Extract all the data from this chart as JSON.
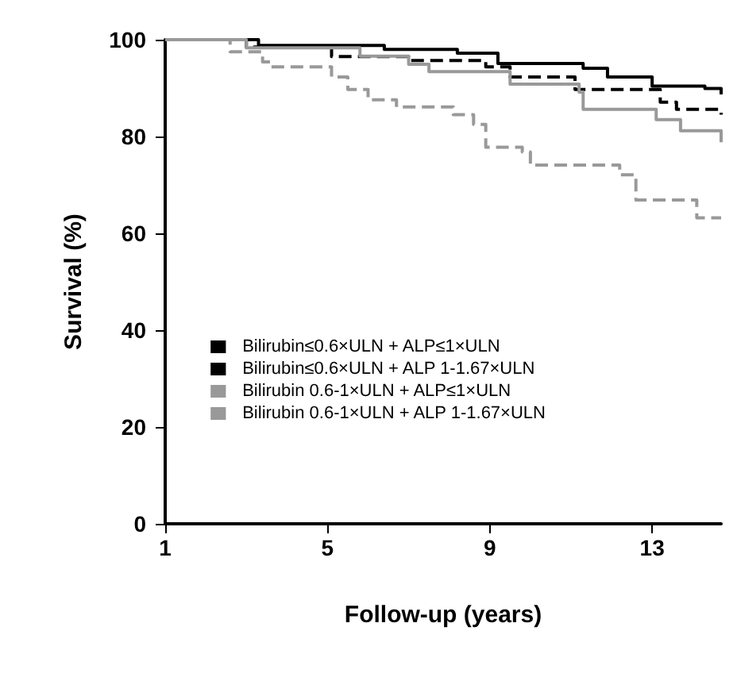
{
  "chart_data": {
    "type": "step",
    "xlabel": "Follow-up (years)",
    "ylabel": "Survival (%)",
    "xlim": [
      1,
      14.7
    ],
    "xticks": [
      1,
      5,
      9,
      13
    ],
    "ylim": [
      0,
      100
    ],
    "yticks": [
      0,
      20,
      40,
      60,
      80,
      100
    ],
    "grid": false,
    "legend": "left",
    "marker": "none",
    "series": [
      {
        "name": "Bilirubin≤0.6×ULN + ALP≤1×ULN",
        "color": "#000000",
        "line_style": "solid",
        "x": [
          1,
          3.3,
          6.4,
          8.2,
          9.2,
          11.3,
          11.9,
          13.0,
          14.3,
          14.7
        ],
        "values": [
          100,
          98.8,
          98,
          97.2,
          95.1,
          94.1,
          92.3,
          90.4,
          89.9,
          88.7
        ]
      },
      {
        "name": "Bilirubin≤0.6×ULN + ALP 1-1.67×ULN",
        "color": "#000000",
        "line_style": "dashed",
        "x": [
          1,
          3.0,
          5.1,
          7.0,
          8.9,
          9.5,
          11.1,
          13.2,
          13.6,
          14.7
        ],
        "values": [
          100,
          98.5,
          96.5,
          95.7,
          94.4,
          92.3,
          89.7,
          87.1,
          85.6,
          84.5
        ]
      },
      {
        "name": "Bilirubin 0.6-1×ULN + ALP≤1×ULN",
        "color": "#999999",
        "line_style": "solid",
        "x": [
          1,
          3.0,
          5.8,
          7.0,
          7.5,
          9.5,
          11.2,
          11.3,
          13.1,
          13.7,
          14.7
        ],
        "values": [
          100,
          98.3,
          96.6,
          94.9,
          93.4,
          90.8,
          89.2,
          85.6,
          83.5,
          81.2,
          78.8
        ]
      },
      {
        "name": "Bilirubin 0.6-1×ULN + ALP 1-1.67×ULN",
        "color": "#999999",
        "line_style": "dashed",
        "x": [
          1,
          2.6,
          3.4,
          3.6,
          5.1,
          5.5,
          6.0,
          6.7,
          8.1,
          8.6,
          8.9,
          9.8,
          10.0,
          12.2,
          12.6,
          14.1,
          14.7
        ],
        "values": [
          100,
          97.5,
          95.4,
          94.4,
          92.3,
          89.7,
          87.6,
          86.1,
          84.5,
          82.5,
          77.8,
          76.8,
          74.1,
          72.1,
          66.9,
          63.2,
          63.2
        ]
      }
    ]
  }
}
